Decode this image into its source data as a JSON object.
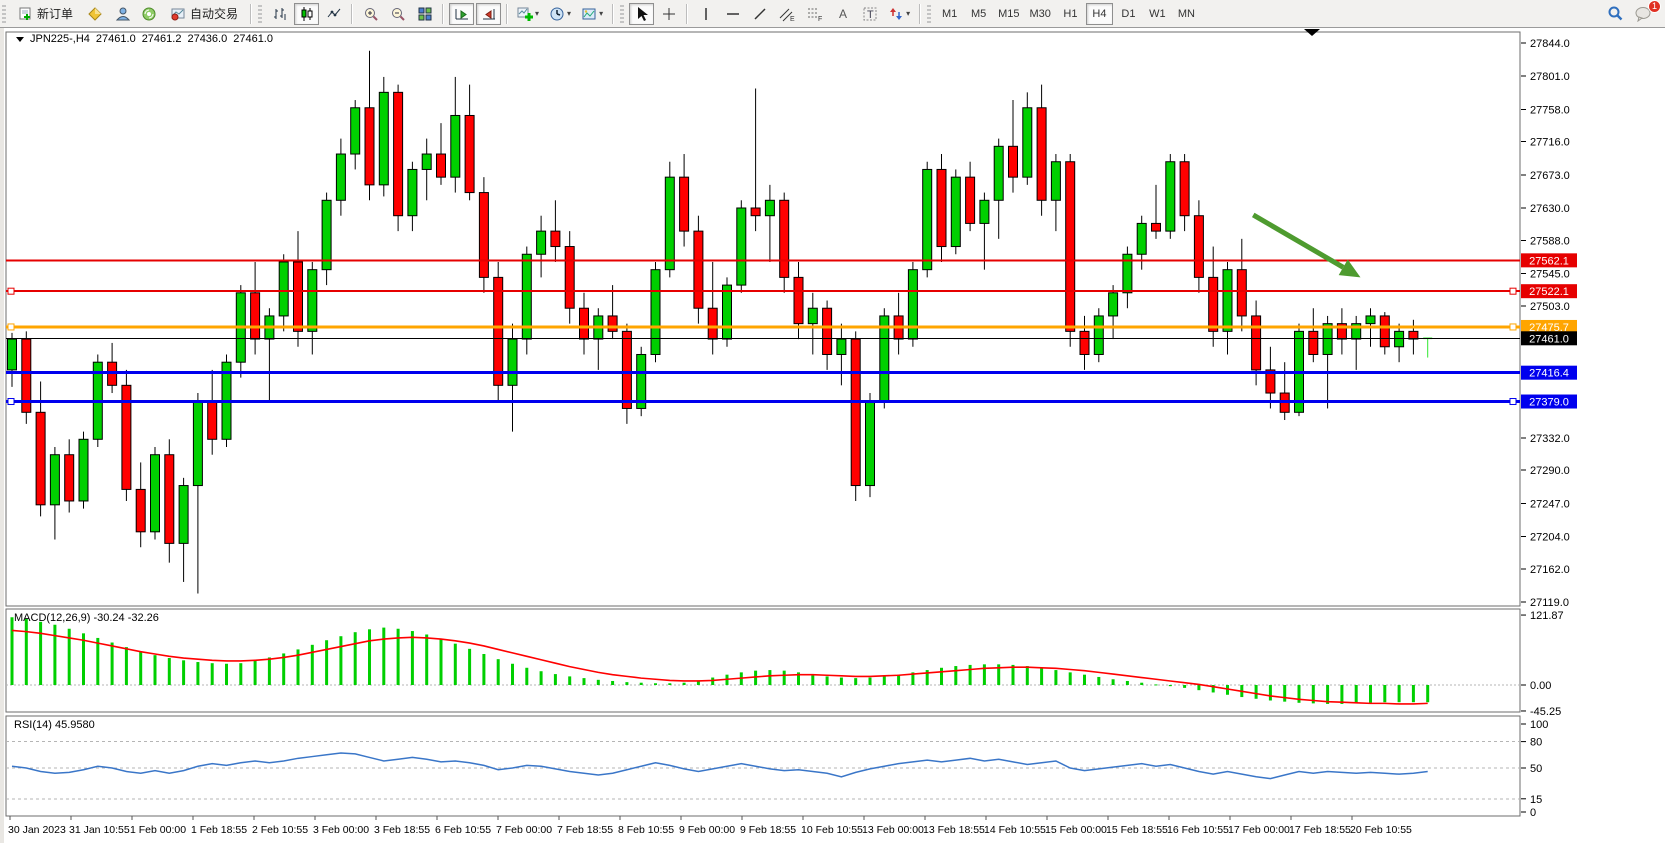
{
  "toolbar": {
    "new_order_label": "新订单",
    "autotrading_label": "自动交易",
    "timeframes": [
      "M1",
      "M5",
      "M15",
      "M30",
      "H1",
      "H4",
      "D1",
      "W1",
      "MN"
    ],
    "active_timeframe": "H4",
    "notification_badge": "1"
  },
  "window": {
    "symbol_period": "JPN225-,H4",
    "open": "27461.0",
    "high": "27461.2",
    "low": "27436.0",
    "close": "27461.0"
  },
  "chart_data": {
    "type": "candlestick",
    "symbol": "JPN225-",
    "timeframe": "H4",
    "colors": {
      "bull": "#00d000",
      "bear": "#ff0000",
      "outline": "#000000",
      "live_bar": "#30e830",
      "macd_hist": "#00cf00",
      "macd_signal": "#ff0000",
      "rsi_line": "#3a76c8",
      "arrow": "#4e9b2f"
    },
    "price_axis_ticks": [
      {
        "value": 27844,
        "label": "27844.0"
      },
      {
        "value": 27801,
        "label": "27801.0"
      },
      {
        "value": 27758,
        "label": "27758.0"
      },
      {
        "value": 27716,
        "label": "27716.0"
      },
      {
        "value": 27673,
        "label": "27673.0"
      },
      {
        "value": 27630,
        "label": "27630.0"
      },
      {
        "value": 27588,
        "label": "27588.0"
      },
      {
        "value": 27545,
        "label": "27545.0"
      },
      {
        "value": 27503,
        "label": "27503.0"
      },
      {
        "value": 27332,
        "label": "27332.0"
      },
      {
        "value": 27290,
        "label": "27290.0"
      },
      {
        "value": 27247,
        "label": "27247.0"
      },
      {
        "value": 27204,
        "label": "27204.0"
      },
      {
        "value": 27162,
        "label": "27162.0"
      },
      {
        "value": 27119,
        "label": "27119.0"
      }
    ],
    "price_lines": [
      {
        "price": 27562.1,
        "label": "27562.1",
        "color": "#e60000",
        "width": 2,
        "selected": false
      },
      {
        "price": 27522.1,
        "label": "27522.1",
        "color": "#e60000",
        "width": 2,
        "selected": true
      },
      {
        "price": 27475.7,
        "label": "27475.7",
        "color": "#ffa500",
        "width": 3,
        "selected": true
      },
      {
        "price": 27461.0,
        "label": "27461.0",
        "color": "#000000",
        "width": 1,
        "selected": false
      },
      {
        "price": 27416.4,
        "label": "27416.4",
        "color": "#0000ee",
        "width": 3,
        "selected": false
      },
      {
        "price": 27379.0,
        "label": "27379.0",
        "color": "#0000ee",
        "width": 3,
        "selected": true
      }
    ],
    "annotation_arrow": {
      "from_bar": 86.8,
      "from_price": 27621,
      "to_bar": 94.3,
      "to_price": 27540
    },
    "candles": [
      [
        27420,
        27468,
        27398,
        27460
      ],
      [
        27460,
        27470,
        27350,
        27365
      ],
      [
        27365,
        27405,
        27230,
        27245
      ],
      [
        27245,
        27320,
        27200,
        27310
      ],
      [
        27310,
        27330,
        27235,
        27250
      ],
      [
        27250,
        27340,
        27240,
        27330
      ],
      [
        27330,
        27440,
        27320,
        27430
      ],
      [
        27430,
        27455,
        27390,
        27400
      ],
      [
        27400,
        27420,
        27250,
        27265
      ],
      [
        27265,
        27300,
        27190,
        27210
      ],
      [
        27210,
        27320,
        27200,
        27310
      ],
      [
        27310,
        27330,
        27170,
        27195
      ],
      [
        27195,
        27280,
        27145,
        27270
      ],
      [
        27270,
        27390,
        27130,
        27380
      ],
      [
        27380,
        27420,
        27310,
        27330
      ],
      [
        27330,
        27440,
        27320,
        27430
      ],
      [
        27430,
        27530,
        27410,
        27520
      ],
      [
        27520,
        27560,
        27440,
        27460
      ],
      [
        27460,
        27500,
        27380,
        27490
      ],
      [
        27490,
        27570,
        27470,
        27560
      ],
      [
        27560,
        27600,
        27450,
        27470
      ],
      [
        27470,
        27560,
        27440,
        27550
      ],
      [
        27550,
        27650,
        27530,
        27640
      ],
      [
        27640,
        27720,
        27620,
        27700
      ],
      [
        27700,
        27770,
        27680,
        27760
      ],
      [
        27760,
        27834,
        27640,
        27660
      ],
      [
        27660,
        27800,
        27645,
        27780
      ],
      [
        27780,
        27790,
        27600,
        27620
      ],
      [
        27620,
        27690,
        27600,
        27680
      ],
      [
        27680,
        27720,
        27640,
        27700
      ],
      [
        27700,
        27740,
        27660,
        27670
      ],
      [
        27670,
        27800,
        27650,
        27750
      ],
      [
        27750,
        27790,
        27640,
        27650
      ],
      [
        27650,
        27670,
        27520,
        27540
      ],
      [
        27540,
        27560,
        27380,
        27400
      ],
      [
        27400,
        27480,
        27340,
        27460
      ],
      [
        27460,
        27580,
        27440,
        27570
      ],
      [
        27570,
        27620,
        27540,
        27600
      ],
      [
        27600,
        27640,
        27560,
        27580
      ],
      [
        27580,
        27600,
        27480,
        27500
      ],
      [
        27500,
        27520,
        27440,
        27460
      ],
      [
        27460,
        27500,
        27420,
        27490
      ],
      [
        27490,
        27530,
        27460,
        27470
      ],
      [
        27470,
        27480,
        27350,
        27370
      ],
      [
        27370,
        27450,
        27360,
        27440
      ],
      [
        27440,
        27560,
        27430,
        27550
      ],
      [
        27550,
        27690,
        27540,
        27670
      ],
      [
        27670,
        27700,
        27580,
        27600
      ],
      [
        27600,
        27620,
        27480,
        27500
      ],
      [
        27500,
        27560,
        27440,
        27460
      ],
      [
        27460,
        27540,
        27450,
        27530
      ],
      [
        27530,
        27640,
        27520,
        27630
      ],
      [
        27630,
        27785,
        27600,
        27620
      ],
      [
        27620,
        27660,
        27560,
        27640
      ],
      [
        27640,
        27650,
        27520,
        27540
      ],
      [
        27540,
        27560,
        27460,
        27480
      ],
      [
        27480,
        27520,
        27440,
        27500
      ],
      [
        27500,
        27510,
        27420,
        27440
      ],
      [
        27440,
        27480,
        27400,
        27460
      ],
      [
        27460,
        27470,
        27250,
        27270
      ],
      [
        27270,
        27390,
        27255,
        27380
      ],
      [
        27380,
        27500,
        27370,
        27490
      ],
      [
        27490,
        27520,
        27440,
        27460
      ],
      [
        27460,
        27560,
        27450,
        27550
      ],
      [
        27550,
        27690,
        27540,
        27680
      ],
      [
        27680,
        27700,
        27560,
        27580
      ],
      [
        27580,
        27680,
        27570,
        27670
      ],
      [
        27670,
        27690,
        27600,
        27610
      ],
      [
        27610,
        27650,
        27550,
        27640
      ],
      [
        27640,
        27720,
        27590,
        27710
      ],
      [
        27710,
        27770,
        27650,
        27670
      ],
      [
        27670,
        27780,
        27660,
        27760
      ],
      [
        27760,
        27790,
        27620,
        27640
      ],
      [
        27640,
        27700,
        27600,
        27690
      ],
      [
        27690,
        27700,
        27450,
        27470
      ],
      [
        27470,
        27490,
        27420,
        27440
      ],
      [
        27440,
        27500,
        27430,
        27490
      ],
      [
        27490,
        27530,
        27460,
        27520
      ],
      [
        27520,
        27580,
        27500,
        27570
      ],
      [
        27570,
        27620,
        27550,
        27610
      ],
      [
        27610,
        27660,
        27590,
        27600
      ],
      [
        27600,
        27700,
        27590,
        27690
      ],
      [
        27690,
        27700,
        27600,
        27620
      ],
      [
        27620,
        27640,
        27520,
        27540
      ],
      [
        27540,
        27580,
        27450,
        27470
      ],
      [
        27470,
        27560,
        27440,
        27550
      ],
      [
        27550,
        27590,
        27470,
        27490
      ],
      [
        27490,
        27510,
        27400,
        27420
      ],
      [
        27420,
        27450,
        27370,
        27390
      ],
      [
        27390,
        27430,
        27355,
        27365
      ],
      [
        27365,
        27480,
        27360,
        27470
      ],
      [
        27470,
        27500,
        27430,
        27440
      ],
      [
        27440,
        27490,
        27370,
        27480
      ],
      [
        27480,
        27500,
        27440,
        27460
      ],
      [
        27460,
        27490,
        27420,
        27480
      ],
      [
        27480,
        27500,
        27450,
        27490
      ],
      [
        27490,
        27495,
        27440,
        27450
      ],
      [
        27450,
        27480,
        27430,
        27470
      ],
      [
        27470,
        27485,
        27440,
        27460
      ],
      [
        27461,
        27461.2,
        27436,
        27461
      ]
    ],
    "macd": {
      "label": "MACD(12,26,9) -30.24 -32.26",
      "axis_ticks": [
        {
          "value": 121.87,
          "label": "121.87"
        },
        {
          "value": 0,
          "label": "0.00"
        },
        {
          "value": -45.25,
          "label": "-45.25"
        }
      ],
      "histogram": [
        118,
        115,
        110,
        105,
        98,
        90,
        82,
        74,
        66,
        58,
        52,
        47,
        43,
        40,
        38,
        37,
        38,
        42,
        48,
        55,
        62,
        70,
        78,
        85,
        92,
        97,
        100,
        98,
        94,
        88,
        80,
        72,
        63,
        54,
        45,
        37,
        30,
        24,
        19,
        15,
        12,
        9,
        7,
        5,
        4,
        3,
        3,
        4,
        8,
        13,
        18,
        22,
        25,
        26,
        25,
        22,
        18,
        15,
        13,
        12,
        13,
        15,
        18,
        22,
        26,
        30,
        33,
        35,
        36,
        36,
        35,
        33,
        30,
        26,
        22,
        18,
        14,
        10,
        7,
        4,
        1,
        -2,
        -5,
        -9,
        -13,
        -17,
        -21,
        -24,
        -27,
        -29,
        -31,
        -32,
        -33,
        -33,
        -32,
        -31,
        -30,
        -30,
        -30,
        -30
      ],
      "signal": [
        95,
        93,
        90,
        86,
        82,
        78,
        73,
        68,
        63,
        58,
        54,
        50,
        47,
        45,
        43,
        42,
        42,
        43,
        45,
        48,
        52,
        57,
        62,
        67,
        72,
        77,
        80,
        82,
        83,
        82,
        80,
        77,
        73,
        68,
        62,
        56,
        50,
        44,
        38,
        32,
        27,
        22,
        18,
        15,
        12,
        10,
        8,
        7,
        7,
        8,
        10,
        12,
        14,
        16,
        17,
        18,
        18,
        17,
        16,
        15,
        15,
        16,
        17,
        19,
        21,
        23,
        25,
        27,
        29,
        30,
        31,
        31,
        30,
        29,
        27,
        25,
        22,
        19,
        16,
        13,
        10,
        7,
        4,
        1,
        -3,
        -7,
        -11,
        -15,
        -19,
        -22,
        -25,
        -27,
        -29,
        -30,
        -31,
        -32,
        -32,
        -33,
        -33,
        -32
      ]
    },
    "rsi": {
      "label": "RSI(14) 45.9580",
      "axis_ticks": [
        {
          "value": 100,
          "label": "100"
        },
        {
          "value": 80,
          "label": "80"
        },
        {
          "value": 50,
          "label": "50"
        },
        {
          "value": 15,
          "label": "15"
        },
        {
          "value": 0,
          "label": "0"
        }
      ],
      "levels": [
        80,
        50,
        15
      ],
      "values": [
        52,
        50,
        46,
        44,
        45,
        48,
        52,
        50,
        46,
        44,
        47,
        44,
        47,
        52,
        55,
        53,
        56,
        58,
        56,
        58,
        61,
        63,
        65,
        67,
        66,
        62,
        58,
        60,
        62,
        60,
        57,
        58,
        56,
        53,
        48,
        50,
        53,
        52,
        49,
        46,
        44,
        42,
        44,
        48,
        52,
        56,
        53,
        49,
        46,
        49,
        52,
        55,
        52,
        49,
        47,
        48,
        46,
        44,
        40,
        45,
        49,
        52,
        55,
        57,
        59,
        57,
        59,
        61,
        58,
        60,
        57,
        54,
        56,
        58,
        50,
        47,
        49,
        51,
        53,
        55,
        52,
        54,
        50,
        46,
        43,
        46,
        43,
        40,
        38,
        42,
        46,
        44,
        46,
        45,
        44,
        45,
        44,
        43,
        44,
        46
      ]
    },
    "time_axis": [
      "30 Jan 2023",
      "31 Jan 10:55",
      "1 Feb 00:00",
      "1 Feb 18:55",
      "2 Feb 10:55",
      "3 Feb 00:00",
      "3 Feb 18:55",
      "6 Feb 10:55",
      "7 Feb 00:00",
      "7 Feb 18:55",
      "8 Feb 10:55",
      "9 Feb 00:00",
      "9 Feb 18:55",
      "10 Feb 10:55",
      "13 Feb 00:00",
      "13 Feb 18:55",
      "14 Feb 10:55",
      "15 Feb 00:00",
      "15 Feb 18:55",
      "16 Feb 10:55",
      "17 Feb 00:00",
      "17 Feb 18:55",
      "20 Feb 10:55"
    ]
  }
}
